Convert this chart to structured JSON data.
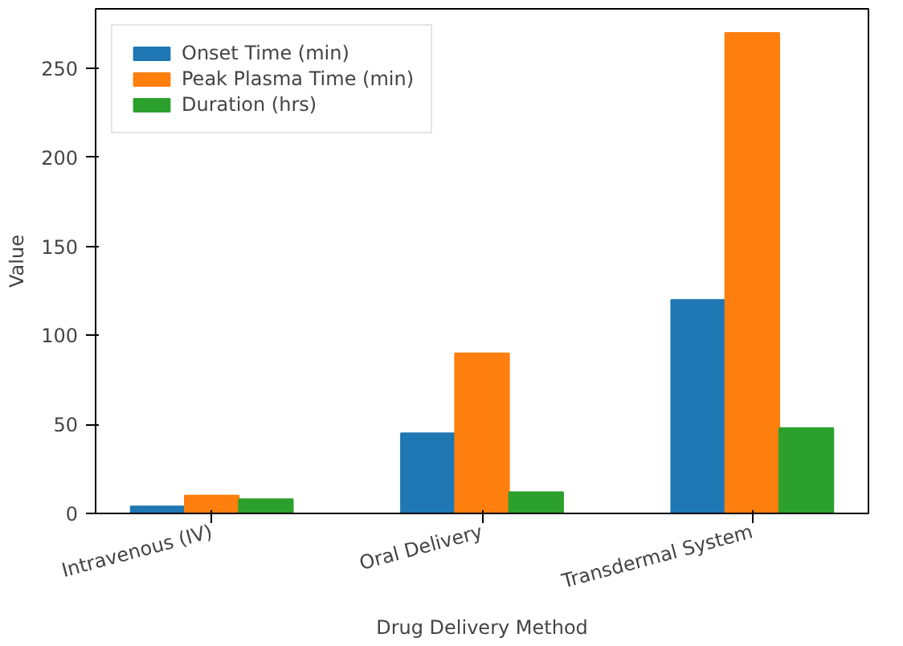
{
  "chart_data": {
    "type": "bar",
    "xlabel": "Drug Delivery Method",
    "ylabel": "Value",
    "categories": [
      "Intravenous (IV)",
      "Oral Delivery",
      "Transdermal System"
    ],
    "series": [
      {
        "name": "Onset Time (min)",
        "color": "#1f77b4",
        "values": [
          4,
          45,
          120
        ]
      },
      {
        "name": "Peak Plasma Time (min)",
        "color": "#ff7f0e",
        "values": [
          10,
          90,
          270
        ]
      },
      {
        "name": "Duration (hrs)",
        "color": "#2ca02c",
        "values": [
          8,
          12,
          48
        ]
      }
    ],
    "ylim": [
      0,
      283.5
    ],
    "yticks": [
      0,
      50,
      100,
      150,
      200,
      250
    ],
    "grid": false,
    "legend": "top left"
  }
}
